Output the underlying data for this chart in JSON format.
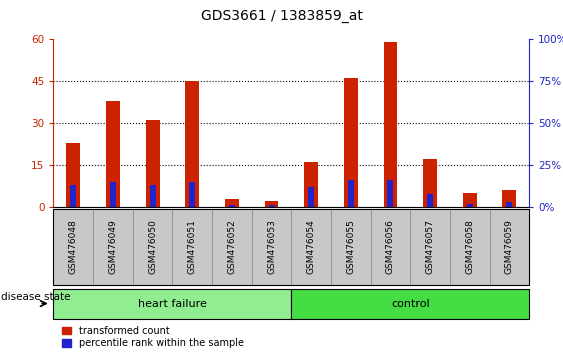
{
  "title": "GDS3661 / 1383859_at",
  "samples": [
    "GSM476048",
    "GSM476049",
    "GSM476050",
    "GSM476051",
    "GSM476052",
    "GSM476053",
    "GSM476054",
    "GSM476055",
    "GSM476056",
    "GSM476057",
    "GSM476058",
    "GSM476059"
  ],
  "transformed_count": [
    23,
    38,
    31,
    45,
    3,
    2,
    16,
    46,
    59,
    17,
    5,
    6
  ],
  "percentile_rank": [
    13,
    15,
    13,
    15,
    1,
    1,
    12,
    16,
    16,
    8,
    2,
    3
  ],
  "groups": [
    {
      "label": "heart failure",
      "start": 0,
      "end": 6,
      "color": "#90EE90"
    },
    {
      "label": "control",
      "start": 6,
      "end": 12,
      "color": "#44DD44"
    }
  ],
  "ylim_left": [
    0,
    60
  ],
  "ylim_right": [
    0,
    100
  ],
  "yticks_left": [
    0,
    15,
    30,
    45,
    60
  ],
  "yticks_right": [
    0,
    25,
    50,
    75,
    100
  ],
  "bar_color_red": "#CC2200",
  "bar_color_blue": "#2222CC",
  "bar_width": 0.35,
  "blue_bar_width": 0.15,
  "background_color": "#ffffff",
  "tick_label_color_left": "#CC2200",
  "tick_label_color_right": "#2222CC",
  "disease_state_label": "disease state",
  "legend_entries": [
    "transformed count",
    "percentile rank within the sample"
  ],
  "title_fontsize": 10,
  "tick_fontsize": 7.5,
  "sample_label_fontsize": 6.5,
  "group_label_fontsize": 8,
  "legend_fontsize": 7,
  "xlim": [
    -0.5,
    11.5
  ],
  "gray_box_color": "#C8C8C8",
  "heart_failure_color": "#90EE90",
  "control_color": "#44CC44",
  "dotted_line_color": "#000000",
  "group_border_color": "#000000"
}
